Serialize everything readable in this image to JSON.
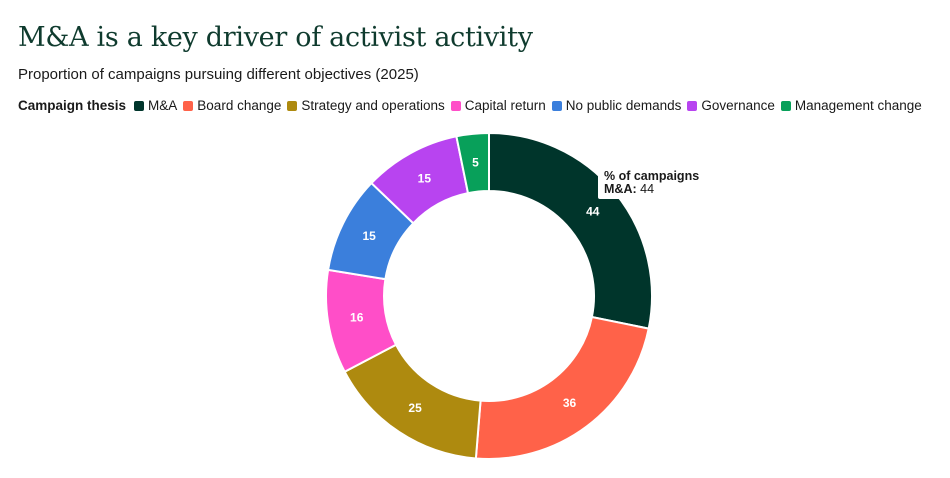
{
  "title": "M&A is a key driver of activist activity",
  "subtitle": "Proportion of campaigns pursuing different objectives (2025)",
  "legend_title": "Campaign thesis",
  "tooltip": {
    "header": "% of campaigns",
    "key": "M&A:",
    "value": "44"
  },
  "chart_data": {
    "type": "pie",
    "variant": "donut",
    "categories": [
      "M&A",
      "Board change",
      "Strategy and operations",
      "Capital return",
      "No public demands",
      "Governance",
      "Management change"
    ],
    "values": [
      44,
      36,
      25,
      16,
      15,
      15,
      5
    ],
    "colors": [
      "#00352b",
      "#ff6249",
      "#ae8a0f",
      "#ff4ec8",
      "#3b7fdc",
      "#b844f0",
      "#08a05a"
    ],
    "legend_placement": "top-left"
  }
}
